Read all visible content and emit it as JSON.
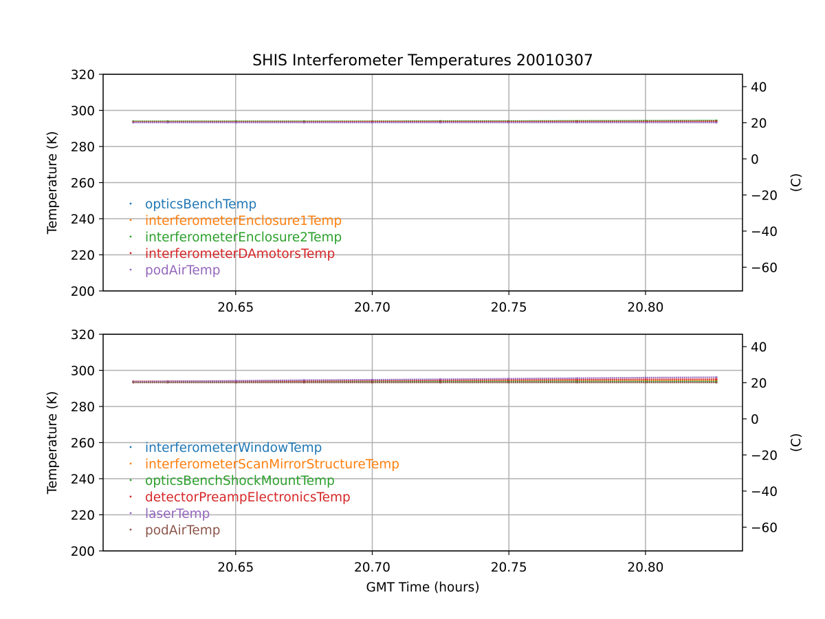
{
  "chart_data": [
    {
      "type": "scatter",
      "title": "SHIS Interferometer Temperatures 20010307",
      "xlabel": "",
      "ylabel": "Temperature (K)",
      "ylabel_right": "(C)",
      "xlim": [
        20.6015,
        20.8355
      ],
      "ylim": [
        200,
        320
      ],
      "ylim_right": [
        -73.15,
        46.85
      ],
      "xticks": [
        20.65,
        20.7,
        20.75,
        20.8
      ],
      "xtick_labels": [
        "20.65",
        "20.70",
        "20.75",
        "20.80"
      ],
      "yticks": [
        200,
        220,
        240,
        260,
        280,
        300,
        320
      ],
      "ytick_labels": [
        "200",
        "220",
        "240",
        "260",
        "280",
        "300",
        "320"
      ],
      "yticks_right": [
        -60,
        -40,
        -20,
        0,
        20,
        40
      ],
      "ytick_labels_right": [
        "−60",
        "−40",
        "−20",
        "0",
        "20",
        "40"
      ],
      "grid": true,
      "legend_position": "lower-left",
      "x": [
        20.6125,
        20.625,
        20.65,
        20.675,
        20.7,
        20.725,
        20.75,
        20.775,
        20.8,
        20.826
      ],
      "series": [
        {
          "name": "opticsBenchTemp",
          "color": "#1f77b4",
          "values": [
            293.7,
            293.7,
            293.7,
            293.7,
            293.7,
            293.7,
            293.8,
            293.8,
            293.8,
            293.8
          ]
        },
        {
          "name": "interferometerEnclosure1Temp",
          "color": "#ff7f0e",
          "values": [
            293.9,
            293.9,
            293.9,
            293.9,
            293.9,
            294.0,
            294.0,
            294.1,
            294.2,
            294.2
          ]
        },
        {
          "name": "interferometerEnclosure2Temp",
          "color": "#2ca02c",
          "values": [
            294.0,
            294.0,
            294.0,
            294.0,
            294.0,
            294.1,
            294.1,
            294.2,
            294.3,
            294.4
          ]
        },
        {
          "name": "interferometerDAmotorsTemp",
          "color": "#d62728",
          "values": [
            293.6,
            293.6,
            293.6,
            293.6,
            293.7,
            293.7,
            293.7,
            293.8,
            293.8,
            293.9
          ]
        },
        {
          "name": "podAirTemp",
          "color": "#9467bd",
          "values": [
            293.3,
            293.3,
            293.3,
            293.3,
            293.3,
            293.3,
            293.3,
            293.3,
            293.3,
            293.3
          ]
        }
      ]
    },
    {
      "type": "scatter",
      "title": "",
      "xlabel": "GMT Time (hours)",
      "ylabel": "Temperature (K)",
      "ylabel_right": "(C)",
      "xlim": [
        20.6015,
        20.8355
      ],
      "ylim": [
        200,
        320
      ],
      "ylim_right": [
        -73.15,
        46.85
      ],
      "xticks": [
        20.65,
        20.7,
        20.75,
        20.8
      ],
      "xtick_labels": [
        "20.65",
        "20.70",
        "20.75",
        "20.80"
      ],
      "yticks": [
        200,
        220,
        240,
        260,
        280,
        300,
        320
      ],
      "ytick_labels": [
        "200",
        "220",
        "240",
        "260",
        "280",
        "300",
        "320"
      ],
      "yticks_right": [
        -60,
        -40,
        -20,
        0,
        20,
        40
      ],
      "ytick_labels_right": [
        "−60",
        "−40",
        "−20",
        "0",
        "20",
        "40"
      ],
      "grid": true,
      "legend_position": "lower-left",
      "x": [
        20.6125,
        20.625,
        20.65,
        20.675,
        20.7,
        20.725,
        20.75,
        20.775,
        20.8,
        20.826
      ],
      "series": [
        {
          "name": "interferometerWindowTemp",
          "color": "#1f77b4",
          "values": [
            293.5,
            293.5,
            293.5,
            293.5,
            293.5,
            293.6,
            293.6,
            293.6,
            293.7,
            293.7
          ]
        },
        {
          "name": "interferometerScanMirrorStructureTemp",
          "color": "#ff7f0e",
          "values": [
            293.8,
            293.9,
            293.9,
            294.0,
            294.0,
            294.1,
            294.2,
            294.3,
            294.4,
            294.5
          ]
        },
        {
          "name": "opticsBenchShockMountTemp",
          "color": "#2ca02c",
          "values": [
            293.6,
            293.6,
            293.6,
            293.6,
            293.7,
            293.7,
            293.7,
            293.8,
            293.8,
            293.8
          ]
        },
        {
          "name": "detectorPreampElectronicsTemp",
          "color": "#d62728",
          "values": [
            293.9,
            294.0,
            294.1,
            294.2,
            294.4,
            294.5,
            294.7,
            294.8,
            295.0,
            295.1
          ]
        },
        {
          "name": "laserTemp",
          "color": "#9467bd",
          "values": [
            293.7,
            293.9,
            294.2,
            294.6,
            294.8,
            295.1,
            295.4,
            295.7,
            296.0,
            296.2
          ]
        },
        {
          "name": "podAirTemp",
          "color": "#8c564b",
          "values": [
            293.3,
            293.3,
            293.3,
            293.3,
            293.3,
            293.3,
            293.3,
            293.3,
            293.3,
            293.3
          ]
        }
      ]
    }
  ]
}
